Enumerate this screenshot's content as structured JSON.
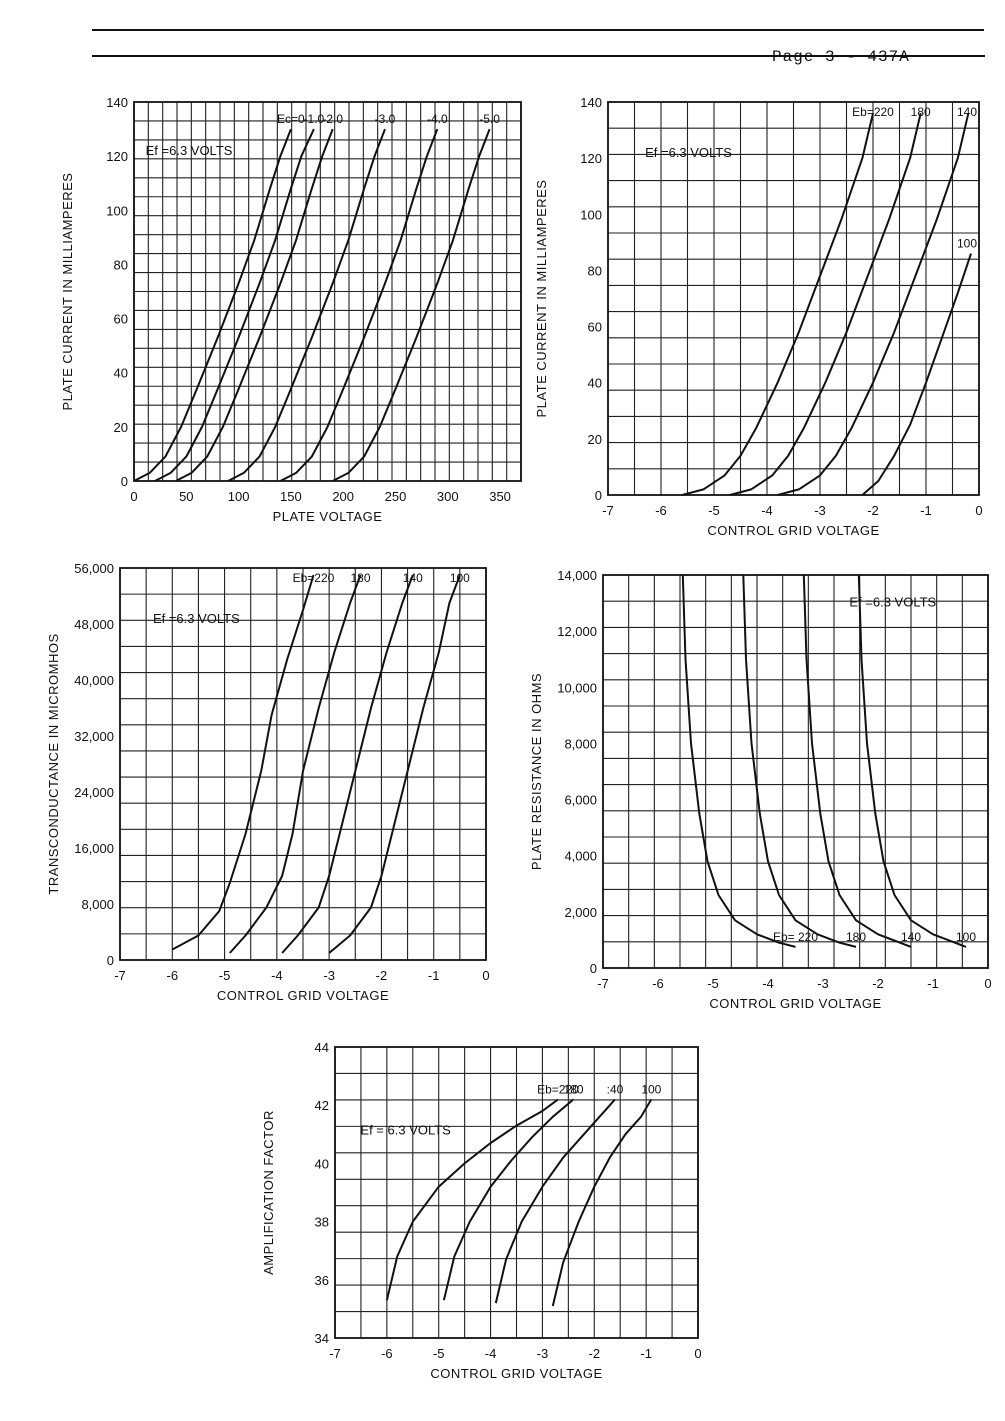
{
  "page": {
    "header": "Page 3 - 437A"
  },
  "chart_data": [
    {
      "type": "line",
      "title": "",
      "xlabel": "PLATE VOLTAGE",
      "ylabel": "PLATE CURRENT IN MILLIAMPERES",
      "xlim": [
        0,
        370
      ],
      "ylim": [
        0,
        140
      ],
      "x_ticks": [
        0,
        50,
        100,
        150,
        200,
        250,
        300,
        350
      ],
      "y_ticks": [
        0,
        20,
        40,
        60,
        80,
        100,
        120,
        140
      ],
      "annotation": "Ef =6.3 VOLTS",
      "series": [
        {
          "name": "Ec=0",
          "points": [
            [
              0,
              0
            ],
            [
              15,
              3
            ],
            [
              30,
              9
            ],
            [
              45,
              20
            ],
            [
              60,
              34
            ],
            [
              80,
              53
            ],
            [
              100,
              73
            ],
            [
              115,
              89
            ],
            [
              130,
              108
            ],
            [
              140,
              120
            ],
            [
              150,
              130
            ]
          ]
        },
        {
          "name": "-1.0",
          "points": [
            [
              20,
              0
            ],
            [
              35,
              3
            ],
            [
              50,
              9
            ],
            [
              65,
              20
            ],
            [
              80,
              34
            ],
            [
              100,
              53
            ],
            [
              120,
              73
            ],
            [
              135,
              89
            ],
            [
              150,
              108
            ],
            [
              160,
              120
            ],
            [
              172,
              130
            ]
          ]
        },
        {
          "name": "-2.0",
          "points": [
            [
              40,
              0
            ],
            [
              55,
              3
            ],
            [
              70,
              9
            ],
            [
              85,
              20
            ],
            [
              100,
              34
            ],
            [
              120,
              53
            ],
            [
              140,
              73
            ],
            [
              155,
              89
            ],
            [
              170,
              108
            ],
            [
              180,
              120
            ],
            [
              190,
              130
            ]
          ]
        },
        {
          "name": "-3.0",
          "points": [
            [
              90,
              0
            ],
            [
              105,
              3
            ],
            [
              120,
              9
            ],
            [
              135,
              20
            ],
            [
              150,
              34
            ],
            [
              170,
              53
            ],
            [
              190,
              73
            ],
            [
              205,
              89
            ],
            [
              220,
              108
            ],
            [
              230,
              120
            ],
            [
              240,
              130
            ]
          ]
        },
        {
          "name": "-4.0",
          "points": [
            [
              140,
              0
            ],
            [
              155,
              3
            ],
            [
              170,
              9
            ],
            [
              185,
              20
            ],
            [
              200,
              34
            ],
            [
              220,
              53
            ],
            [
              240,
              73
            ],
            [
              255,
              89
            ],
            [
              270,
              108
            ],
            [
              280,
              120
            ],
            [
              290,
              130
            ]
          ]
        },
        {
          "name": "-5.0",
          "points": [
            [
              190,
              0
            ],
            [
              205,
              3
            ],
            [
              220,
              9
            ],
            [
              235,
              20
            ],
            [
              250,
              34
            ],
            [
              270,
              53
            ],
            [
              290,
              73
            ],
            [
              305,
              89
            ],
            [
              320,
              108
            ],
            [
              330,
              120
            ],
            [
              340,
              130
            ]
          ]
        }
      ]
    },
    {
      "type": "line",
      "title": "",
      "xlabel": "CONTROL GRID VOLTAGE",
      "ylabel": "PLATE CURRENT IN MILLIAMPERES",
      "xlim": [
        -7,
        0
      ],
      "ylim": [
        0,
        140
      ],
      "x_ticks": [
        -7,
        -6,
        -5,
        -4,
        -3,
        -2,
        -1,
        0
      ],
      "y_ticks": [
        0,
        20,
        40,
        60,
        80,
        100,
        120,
        140
      ],
      "annotation": "Ef =6.3 VOLTS",
      "series": [
        {
          "name": "Eb=220",
          "points": [
            [
              -5.6,
              0
            ],
            [
              -5.2,
              2
            ],
            [
              -4.8,
              7
            ],
            [
              -4.5,
              14
            ],
            [
              -4.2,
              24
            ],
            [
              -3.8,
              40
            ],
            [
              -3.4,
              58
            ],
            [
              -3.0,
              78
            ],
            [
              -2.6,
              98
            ],
            [
              -2.2,
              120
            ],
            [
              -2.0,
              136
            ]
          ]
        },
        {
          "name": "180",
          "points": [
            [
              -4.7,
              0
            ],
            [
              -4.3,
              2
            ],
            [
              -3.9,
              7
            ],
            [
              -3.6,
              14
            ],
            [
              -3.3,
              24
            ],
            [
              -2.9,
              40
            ],
            [
              -2.5,
              58
            ],
            [
              -2.1,
              78
            ],
            [
              -1.7,
              98
            ],
            [
              -1.3,
              120
            ],
            [
              -1.1,
              136
            ]
          ]
        },
        {
          "name": "140",
          "points": [
            [
              -3.8,
              0
            ],
            [
              -3.4,
              2
            ],
            [
              -3.0,
              7
            ],
            [
              -2.7,
              14
            ],
            [
              -2.4,
              24
            ],
            [
              -2.0,
              40
            ],
            [
              -1.6,
              58
            ],
            [
              -1.2,
              78
            ],
            [
              -0.8,
              98
            ],
            [
              -0.4,
              120
            ],
            [
              -0.2,
              136
            ]
          ]
        },
        {
          "name": "100",
          "points": [
            [
              -2.2,
              0
            ],
            [
              -1.9,
              5
            ],
            [
              -1.6,
              14
            ],
            [
              -1.3,
              25
            ],
            [
              -1.0,
              40
            ],
            [
              -0.7,
              56
            ],
            [
              -0.4,
              72
            ],
            [
              -0.15,
              86
            ]
          ]
        }
      ]
    },
    {
      "type": "line",
      "title": "",
      "xlabel": "CONTROL GRID VOLTAGE",
      "ylabel": "TRANSCONDUCTANCE IN MICROMHOS",
      "xlim": [
        -7,
        0
      ],
      "ylim": [
        0,
        56000
      ],
      "x_ticks": [
        -7,
        -6,
        -5,
        -4,
        -3,
        -2,
        -1,
        0
      ],
      "y_ticks": [
        0,
        8000,
        16000,
        24000,
        32000,
        40000,
        48000,
        56000
      ],
      "annotation": "Ef =6.3 VOLTS",
      "series": [
        {
          "name": "Eb=220",
          "points": [
            [
              -6.0,
              1500
            ],
            [
              -5.5,
              3500
            ],
            [
              -5.1,
              7000
            ],
            [
              -4.9,
              11000
            ],
            [
              -4.6,
              18000
            ],
            [
              -4.3,
              27000
            ],
            [
              -4.1,
              35000
            ],
            [
              -3.8,
              43000
            ],
            [
              -3.5,
              50000
            ],
            [
              -3.3,
              55000
            ]
          ]
        },
        {
          "name": "180",
          "points": [
            [
              -4.9,
              1000
            ],
            [
              -4.6,
              3500
            ],
            [
              -4.2,
              7500
            ],
            [
              -3.9,
              12000
            ],
            [
              -3.7,
              18000
            ],
            [
              -3.5,
              27000
            ],
            [
              -3.2,
              36000
            ],
            [
              -2.9,
              44000
            ],
            [
              -2.6,
              51000
            ],
            [
              -2.4,
              55000
            ]
          ]
        },
        {
          "name": "140",
          "points": [
            [
              -3.9,
              1000
            ],
            [
              -3.6,
              3500
            ],
            [
              -3.2,
              7500
            ],
            [
              -3.0,
              12000
            ],
            [
              -2.8,
              18000
            ],
            [
              -2.5,
              27000
            ],
            [
              -2.2,
              36000
            ],
            [
              -1.9,
              44000
            ],
            [
              -1.6,
              51000
            ],
            [
              -1.4,
              55000
            ]
          ]
        },
        {
          "name": "100",
          "points": [
            [
              -3.0,
              1000
            ],
            [
              -2.6,
              3500
            ],
            [
              -2.2,
              7500
            ],
            [
              -2.0,
              12000
            ],
            [
              -1.8,
              18000
            ],
            [
              -1.5,
              27000
            ],
            [
              -1.2,
              36000
            ],
            [
              -0.9,
              44000
            ],
            [
              -0.7,
              51000
            ],
            [
              -0.5,
              55000
            ]
          ]
        }
      ]
    },
    {
      "type": "line",
      "title": "",
      "xlabel": "CONTROL GRID VOLTAGE",
      "ylabel": "PLATE RESISTANCE IN OHMS",
      "xlim": [
        -7,
        0
      ],
      "ylim": [
        0,
        14000
      ],
      "x_ticks": [
        -7,
        -6,
        -5,
        -4,
        -3,
        -2,
        -1,
        0
      ],
      "y_ticks": [
        0,
        2000,
        4000,
        6000,
        8000,
        10000,
        12000,
        14000
      ],
      "annotation": "Ef =6.3 VOLTS",
      "series": [
        {
          "name": "Eb= 220",
          "points": [
            [
              -5.55,
              14000
            ],
            [
              -5.5,
              11000
            ],
            [
              -5.4,
              8000
            ],
            [
              -5.25,
              5500
            ],
            [
              -5.1,
              3800
            ],
            [
              -4.9,
              2600
            ],
            [
              -4.6,
              1700
            ],
            [
              -4.2,
              1200
            ],
            [
              -3.8,
              900
            ],
            [
              -3.5,
              750
            ]
          ]
        },
        {
          "name": "180",
          "points": [
            [
              -4.45,
              14000
            ],
            [
              -4.4,
              11000
            ],
            [
              -4.3,
              8000
            ],
            [
              -4.15,
              5500
            ],
            [
              -4.0,
              3800
            ],
            [
              -3.8,
              2600
            ],
            [
              -3.5,
              1700
            ],
            [
              -3.1,
              1200
            ],
            [
              -2.7,
              900
            ],
            [
              -2.4,
              750
            ]
          ]
        },
        {
          "name": "140",
          "points": [
            [
              -3.35,
              14000
            ],
            [
              -3.3,
              11000
            ],
            [
              -3.2,
              8000
            ],
            [
              -3.05,
              5500
            ],
            [
              -2.9,
              3800
            ],
            [
              -2.7,
              2600
            ],
            [
              -2.4,
              1700
            ],
            [
              -2.0,
              1200
            ],
            [
              -1.6,
              900
            ],
            [
              -1.4,
              750
            ]
          ]
        },
        {
          "name": "100",
          "points": [
            [
              -2.35,
              14000
            ],
            [
              -2.3,
              11000
            ],
            [
              -2.2,
              8000
            ],
            [
              -2.05,
              5500
            ],
            [
              -1.9,
              3800
            ],
            [
              -1.7,
              2600
            ],
            [
              -1.4,
              1700
            ],
            [
              -1.0,
              1200
            ],
            [
              -0.6,
              900
            ],
            [
              -0.4,
              750
            ]
          ]
        }
      ]
    },
    {
      "type": "line",
      "title": "",
      "xlabel": "CONTROL GRID VOLTAGE",
      "ylabel": "AMPLIFICATION FACTOR",
      "xlim": [
        -7,
        0
      ],
      "ylim": [
        34,
        44
      ],
      "x_ticks": [
        -7,
        -6,
        -5,
        -4,
        -3,
        -2,
        -1,
        0
      ],
      "y_ticks": [
        34,
        36,
        38,
        40,
        42,
        44
      ],
      "annotation": "Ef = 6.3 VOLTS",
      "series": [
        {
          "name": "Eb=220",
          "points": [
            [
              -6.0,
              35.3
            ],
            [
              -5.8,
              36.8
            ],
            [
              -5.5,
              38.0
            ],
            [
              -5.0,
              39.2
            ],
            [
              -4.5,
              40.0
            ],
            [
              -4.0,
              40.7
            ],
            [
              -3.5,
              41.3
            ],
            [
              -3.0,
              41.8
            ],
            [
              -2.7,
              42.2
            ]
          ]
        },
        {
          "name": "180",
          "points": [
            [
              -4.9,
              35.3
            ],
            [
              -4.7,
              36.8
            ],
            [
              -4.4,
              38.0
            ],
            [
              -4.0,
              39.2
            ],
            [
              -3.6,
              40.1
            ],
            [
              -3.2,
              40.9
            ],
            [
              -2.8,
              41.6
            ],
            [
              -2.4,
              42.2
            ]
          ]
        },
        {
          "name": ":40",
          "points": [
            [
              -3.9,
              35.2
            ],
            [
              -3.7,
              36.7
            ],
            [
              -3.4,
              38.0
            ],
            [
              -3.0,
              39.2
            ],
            [
              -2.6,
              40.2
            ],
            [
              -2.2,
              41.0
            ],
            [
              -1.9,
              41.6
            ],
            [
              -1.6,
              42.2
            ]
          ]
        },
        {
          "name": "100",
          "points": [
            [
              -2.8,
              35.1
            ],
            [
              -2.6,
              36.6
            ],
            [
              -2.3,
              38.0
            ],
            [
              -2.0,
              39.2
            ],
            [
              -1.7,
              40.2
            ],
            [
              -1.4,
              41.0
            ],
            [
              -1.1,
              41.6
            ],
            [
              -0.9,
              42.2
            ]
          ]
        }
      ]
    }
  ]
}
